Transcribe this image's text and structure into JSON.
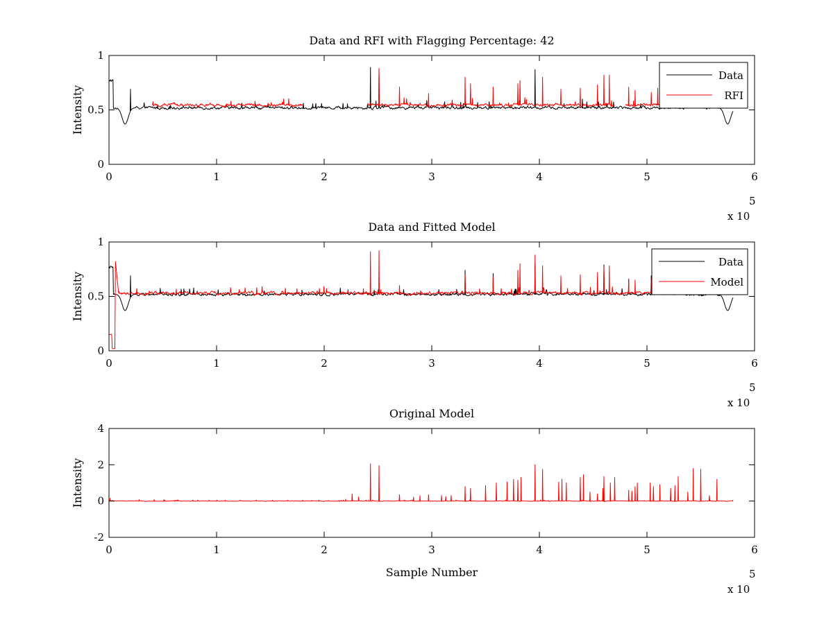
{
  "figure": {
    "background": "#ffffff"
  },
  "chart_data": [
    {
      "type": "line",
      "title": "Data and RFI with Flagging Percentage: 42",
      "xlabel": "",
      "ylabel": "Intensity",
      "xlim": [
        0,
        600000
      ],
      "ylim": [
        0,
        1
      ],
      "xticks": [
        0,
        1,
        2,
        3,
        4,
        5,
        6
      ],
      "xtick_labels": [
        "0",
        "1",
        "2",
        "3",
        "4",
        "5",
        "6"
      ],
      "yticks": [
        0,
        0.5,
        1
      ],
      "ytick_labels": [
        "0",
        "0.5",
        "1"
      ],
      "x_multiplier": {
        "base": "x 10",
        "exponent": "5"
      },
      "legend_position": "top-right",
      "series": [
        {
          "name": "Data",
          "color": "#000000",
          "baseline": 0.52,
          "start_level": 0.77,
          "dips": [
            [
              15000,
              0.37
            ],
            [
              575000,
              0.37
            ]
          ],
          "spikes": [
            [
              20000,
              0.69
            ],
            [
              243000,
              0.89
            ],
            [
              251000,
              0.88
            ],
            [
              396000,
              0.87
            ],
            [
              440000,
              0.6
            ],
            [
              560000,
              0.58
            ]
          ],
          "x_range": [
            0,
            580000
          ]
        },
        {
          "name": "RFI",
          "color": "#ff0000",
          "baseline": 0.545,
          "segments": [
            [
              40000,
              180000
            ],
            [
              240000,
              330000
            ],
            [
              330000,
              470000
            ],
            [
              480000,
              530000
            ]
          ],
          "spikes": [
            [
              251000,
              0.88
            ],
            [
              270000,
              0.71
            ],
            [
              297000,
              0.65
            ],
            [
              331000,
              0.8
            ],
            [
              336000,
              0.74
            ],
            [
              357000,
              0.71
            ],
            [
              380000,
              0.74
            ],
            [
              382000,
              0.77
            ],
            [
              403000,
              0.8
            ],
            [
              420000,
              0.69
            ],
            [
              438000,
              0.7
            ],
            [
              454000,
              0.73
            ],
            [
              460000,
              0.82
            ],
            [
              465000,
              0.82
            ],
            [
              483000,
              0.71
            ],
            [
              489000,
              0.68
            ],
            [
              504000,
              0.66
            ],
            [
              510000,
              0.7
            ]
          ],
          "x_range": [
            0,
            540000
          ]
        }
      ]
    },
    {
      "type": "line",
      "title": "Data and Fitted Model",
      "xlabel": "",
      "ylabel": "Intensity",
      "xlim": [
        0,
        600000
      ],
      "ylim": [
        0,
        1
      ],
      "xticks": [
        0,
        1,
        2,
        3,
        4,
        5,
        6
      ],
      "xtick_labels": [
        "0",
        "1",
        "2",
        "3",
        "4",
        "5",
        "6"
      ],
      "yticks": [
        0,
        0.5,
        1
      ],
      "ytick_labels": [
        "0",
        "0.5",
        "1"
      ],
      "x_multiplier": {
        "base": "x 10",
        "exponent": "5"
      },
      "legend_position": "top-right",
      "series": [
        {
          "name": "Data",
          "color": "#000000",
          "baseline": 0.52,
          "start_level": 0.77,
          "dips": [
            [
              15000,
              0.37
            ],
            [
              575000,
              0.37
            ]
          ],
          "spikes": [
            [
              20000,
              0.69
            ],
            [
              331000,
              0.74
            ],
            [
              357000,
              0.71
            ],
            [
              396000,
              0.8
            ],
            [
              460000,
              0.79
            ],
            [
              483000,
              0.66
            ],
            [
              504000,
              0.69
            ]
          ],
          "x_range": [
            0,
            580000
          ]
        },
        {
          "name": "Model",
          "color": "#ff0000",
          "baseline": 0.53,
          "start_segment": [
            [
              0,
              0.15
            ],
            [
              2500,
              0.15
            ],
            [
              3000,
              0.02
            ],
            [
              5500,
              0.02
            ],
            [
              6000,
              0.82
            ],
            [
              9000,
              0.53
            ]
          ],
          "spikes": [
            [
              243000,
              0.91
            ],
            [
              251000,
              0.92
            ],
            [
              270000,
              0.6
            ],
            [
              331000,
              0.7
            ],
            [
              357000,
              0.68
            ],
            [
              380000,
              0.74
            ],
            [
              382000,
              0.8
            ],
            [
              396000,
              0.88
            ],
            [
              403000,
              0.78
            ],
            [
              420000,
              0.69
            ],
            [
              438000,
              0.7
            ],
            [
              454000,
              0.72
            ],
            [
              460000,
              0.77
            ],
            [
              465000,
              0.78
            ],
            [
              483000,
              0.66
            ],
            [
              489000,
              0.65
            ],
            [
              504000,
              0.66
            ],
            [
              510000,
              0.7
            ],
            [
              520000,
              0.68
            ]
          ],
          "x_range": [
            0,
            540000
          ]
        }
      ]
    },
    {
      "type": "line",
      "title": "Original Model",
      "xlabel": "Sample Number",
      "ylabel": "Intensity",
      "xlim": [
        0,
        600000
      ],
      "ylim": [
        -2,
        4
      ],
      "xticks": [
        0,
        1,
        2,
        3,
        4,
        5,
        6
      ],
      "xtick_labels": [
        "0",
        "1",
        "2",
        "3",
        "4",
        "5",
        "6"
      ],
      "yticks": [
        -2,
        0,
        2,
        4
      ],
      "ytick_labels": [
        "-2",
        "0",
        "2",
        "4"
      ],
      "x_multiplier": {
        "base": "x 10",
        "exponent": "5"
      },
      "legend_position": "none",
      "series": [
        {
          "name": "Original Model",
          "color": "#ff0000",
          "baseline": 0.0,
          "x_range": [
            0,
            580000
          ],
          "spikes": [
            [
              1000,
              0.15
            ],
            [
              28000,
              0.08
            ],
            [
              42000,
              0.08
            ],
            [
              51000,
              0.08
            ],
            [
              64000,
              0.06
            ],
            [
              78000,
              0.06
            ],
            [
              93000,
              0.05
            ],
            [
              108000,
              0.05
            ],
            [
              122000,
              0.05
            ],
            [
              137000,
              0.05
            ],
            [
              152000,
              0.05
            ],
            [
              166000,
              0.05
            ],
            [
              180000,
              0.05
            ],
            [
              195000,
              0.05
            ],
            [
              220000,
              0.1
            ],
            [
              226000,
              0.4
            ],
            [
              232000,
              0.22
            ],
            [
              243000,
              2.05
            ],
            [
              251000,
              1.95
            ],
            [
              270000,
              0.35
            ],
            [
              283000,
              0.22
            ],
            [
              289000,
              0.3
            ],
            [
              297000,
              0.35
            ],
            [
              309000,
              0.3
            ],
            [
              313000,
              0.25
            ],
            [
              318000,
              0.3
            ],
            [
              331000,
              0.8
            ],
            [
              336000,
              0.7
            ],
            [
              350000,
              0.85
            ],
            [
              360000,
              1.0
            ],
            [
              370000,
              1.05
            ],
            [
              376000,
              1.2
            ],
            [
              380000,
              1.15
            ],
            [
              383000,
              1.3
            ],
            [
              396000,
              2.0
            ],
            [
              403000,
              1.75
            ],
            [
              418000,
              1.05
            ],
            [
              421000,
              1.2
            ],
            [
              425000,
              1.0
            ],
            [
              438000,
              1.3
            ],
            [
              441000,
              1.45
            ],
            [
              447000,
              0.5
            ],
            [
              454000,
              0.4
            ],
            [
              459000,
              0.7
            ],
            [
              460000,
              1.35
            ],
            [
              466000,
              1.0
            ],
            [
              470000,
              1.3
            ],
            [
              483000,
              0.6
            ],
            [
              486000,
              0.55
            ],
            [
              489000,
              0.8
            ],
            [
              491000,
              1.0
            ],
            [
              503000,
              1.0
            ],
            [
              506000,
              0.8
            ],
            [
              512000,
              0.9
            ],
            [
              522000,
              0.7
            ],
            [
              526000,
              0.85
            ],
            [
              529000,
              1.35
            ],
            [
              538000,
              0.5
            ],
            [
              543000,
              1.8
            ],
            [
              550000,
              1.75
            ],
            [
              558000,
              0.3
            ],
            [
              565000,
              1.2
            ]
          ]
        }
      ]
    }
  ]
}
